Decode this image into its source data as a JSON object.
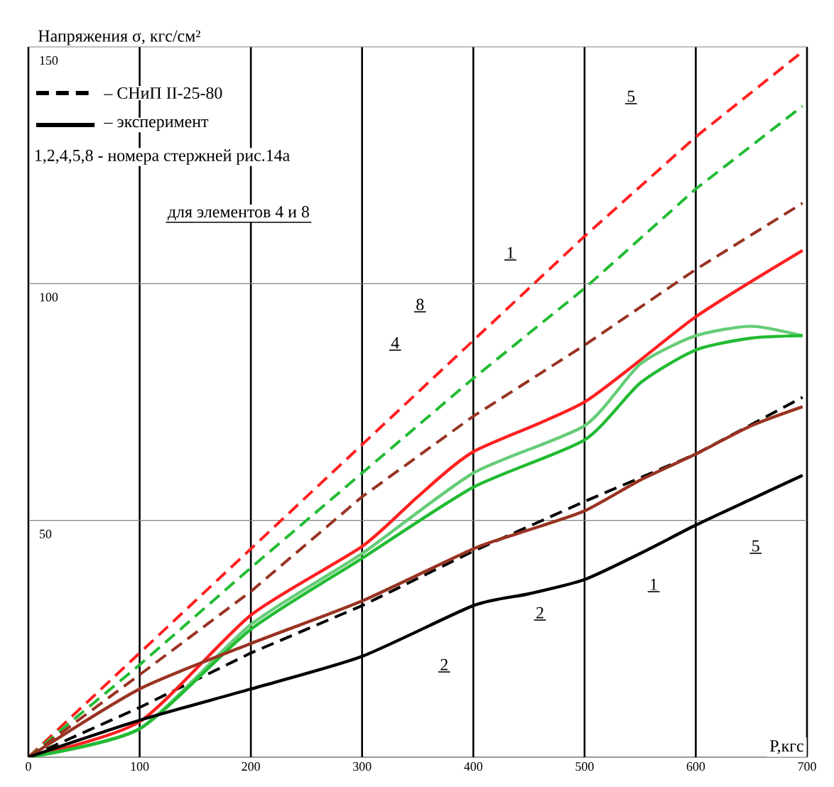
{
  "chart_data": {
    "type": "line",
    "ylabel": "Напряжения σ, кгс/см²",
    "xlabel": "Р,кгс",
    "x": [
      0,
      100,
      200,
      300,
      400,
      500,
      600,
      696
    ],
    "xlim": [
      0,
      700
    ],
    "xticks": [
      0,
      100,
      200,
      300,
      400,
      500,
      600,
      700
    ],
    "ylim": [
      0,
      150
    ],
    "yticks": [
      50,
      100,
      150
    ],
    "grid": true,
    "series": [
      {
        "color": "#ff2020",
        "line_style": "dashed",
        "values": [
          0,
          22,
          44,
          66,
          88,
          110,
          131,
          149
        ]
      },
      {
        "color": "#22bb33",
        "line_style": "dashed",
        "values": [
          0,
          19.5,
          40,
          60,
          80,
          99,
          120,
          137.5
        ]
      },
      {
        "color": "#993322",
        "line_style": "dashed",
        "values": [
          0,
          17.4,
          35,
          55,
          72,
          87,
          103,
          117
        ]
      },
      {
        "color": "#000000",
        "line_style": "dashed",
        "values": [
          0,
          10.5,
          22,
          32,
          43.5,
          54,
          64,
          76
        ]
      },
      {
        "color": "#ff2020",
        "line_style": "solid",
        "x": [
          0,
          100,
          200,
          300,
          350,
          400,
          500,
          600,
          696
        ],
        "values": [
          0,
          7.5,
          30,
          44.5,
          55,
          64.5,
          75,
          93,
          107
        ]
      },
      {
        "color": "#66cc77",
        "line_style": "solid",
        "x": [
          0,
          100,
          200,
          300,
          400,
          500,
          550,
          600,
          650,
          696
        ],
        "values": [
          0,
          6,
          28,
          43,
          60,
          70,
          83,
          89,
          91,
          89
        ]
      },
      {
        "color": "#22bb33",
        "line_style": "solid",
        "x": [
          0,
          100,
          200,
          300,
          400,
          500,
          550,
          600,
          650,
          696
        ],
        "values": [
          0,
          6,
          27,
          42,
          57,
          67,
          79,
          86,
          88.5,
          89
        ]
      },
      {
        "color": "#993322",
        "line_style": "solid",
        "x": [
          0,
          100,
          200,
          300,
          400,
          450,
          500,
          550,
          600,
          650,
          696
        ],
        "values": [
          0,
          14.4,
          24,
          33,
          44,
          48,
          52,
          58.5,
          64,
          70,
          74
        ]
      },
      {
        "color": "#000000",
        "line_style": "solid",
        "x": [
          0,
          100,
          200,
          300,
          400,
          450,
          500,
          550,
          600,
          650,
          696
        ],
        "values": [
          0,
          7.8,
          14.4,
          21.3,
          32,
          34.5,
          37.5,
          43,
          49,
          54.5,
          59.5
        ]
      }
    ],
    "annotations": [
      "– СНиП II-25-80",
      "– эксперимент",
      "1,2,4,5,8 - номера стержней рис.14а",
      "для элементов 4 и 8",
      "5",
      "1",
      "8",
      "4",
      "5",
      "1",
      "2",
      "2"
    ]
  }
}
